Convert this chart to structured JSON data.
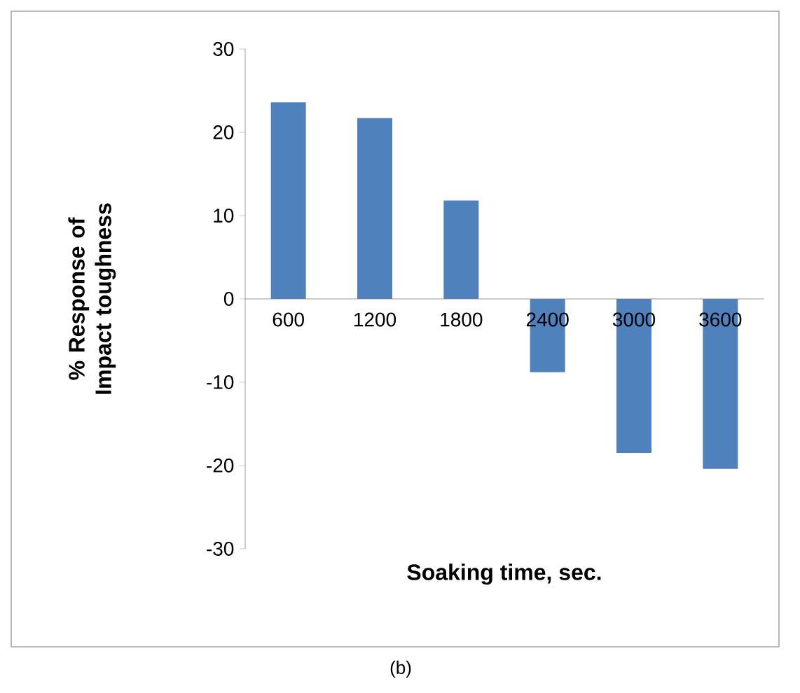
{
  "chart_data": {
    "type": "bar",
    "xlabel": "Soaking time, sec.",
    "ylabel": "% Response of Impact toughness",
    "categories": [
      "600",
      "1200",
      "1800",
      "2400",
      "3000",
      "3600"
    ],
    "values": [
      23.6,
      21.7,
      11.8,
      -8.8,
      -18.5,
      -20.4
    ],
    "color": "#4f81bd",
    "ylim": [
      -30,
      30
    ],
    "yticks": [
      -30,
      -20,
      -10,
      0,
      10,
      20,
      30
    ],
    "grid": false,
    "annotations": [
      "(b)"
    ]
  }
}
